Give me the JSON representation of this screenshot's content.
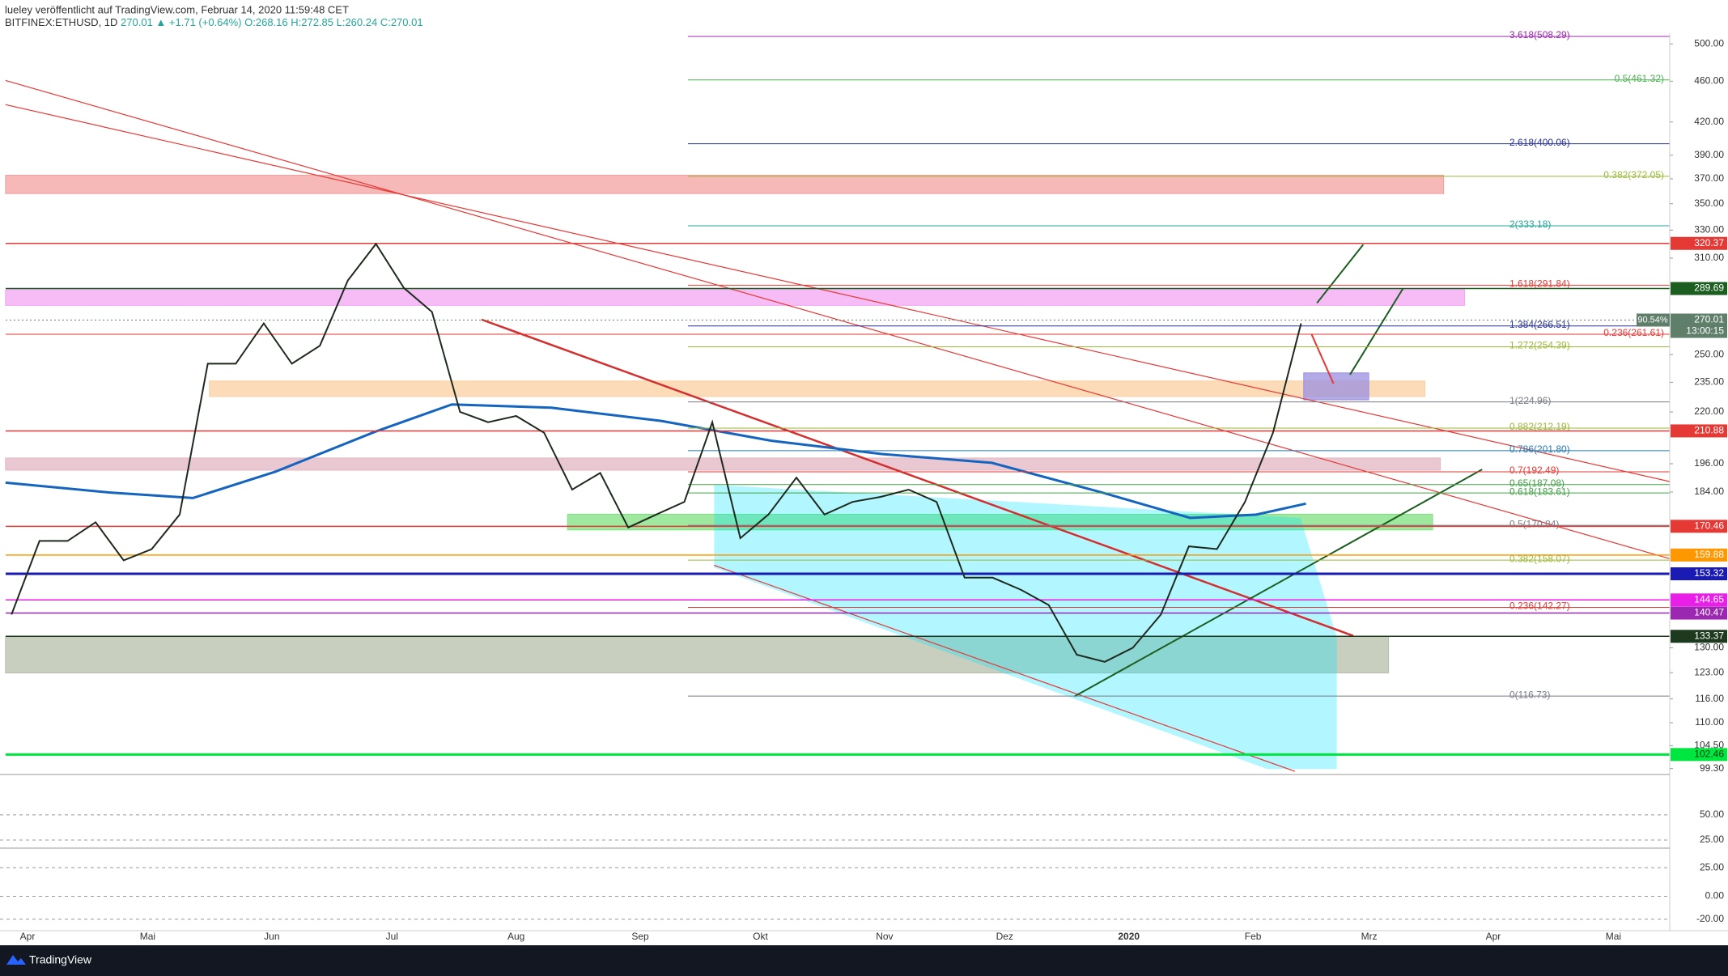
{
  "header": {
    "author_line": "lueley veröffentlicht auf TradingView.com, Februar 14, 2020 11:59:48 CET",
    "symbol": "BITFINEX:ETHUSD, 1D",
    "quote": "270.01 ▲ +1.71 (+0.64%)",
    "ohlc": "O:268.16 H:272.85 L:260.24 C:270.01"
  },
  "chart_data": {
    "type": "line",
    "categories": [
      null,
      null,
      null,
      null,
      null,
      null,
      null,
      null,
      null,
      null,
      null,
      null,
      null,
      null,
      null,
      null,
      null,
      null,
      null,
      null,
      null,
      null,
      null,
      null,
      null,
      null,
      null,
      null,
      null,
      null,
      null,
      null,
      null,
      null,
      null,
      null,
      null,
      null,
      null,
      null,
      null,
      null,
      null,
      null,
      null,
      null,
      null
    ],
    "values": [
      140,
      165,
      165,
      172,
      158,
      162,
      175,
      245,
      245,
      268,
      245,
      255,
      295,
      320,
      290,
      275,
      220,
      215,
      218,
      210,
      185,
      192,
      170,
      175,
      180,
      215,
      166,
      175,
      190,
      175,
      180,
      182,
      185,
      180,
      152,
      152,
      148,
      143,
      128,
      126,
      130,
      140,
      163,
      162,
      180,
      210,
      268
    ],
    "color": "#1e2a1e",
    "log_scale": true,
    "ylim": [
      98,
      512
    ],
    "yticks": [
      {
        "value": 500,
        "label": "500.00"
      },
      {
        "value": 460,
        "label": "460.00"
      },
      {
        "value": 420,
        "label": "420.00"
      },
      {
        "value": 390,
        "label": "390.00"
      },
      {
        "value": 370,
        "label": "370.00"
      },
      {
        "value": 350,
        "label": "350.00"
      },
      {
        "value": 330,
        "label": "330.00"
      },
      {
        "value": 310,
        "label": "310.00"
      },
      {
        "value": 250,
        "label": "250.00"
      },
      {
        "value": 235,
        "label": "235.00"
      },
      {
        "value": 220,
        "label": "220.00"
      },
      {
        "value": 196,
        "label": "196.00"
      },
      {
        "value": 184,
        "label": "184.00"
      },
      {
        "value": 130,
        "label": "130.00"
      },
      {
        "value": 123,
        "label": "123.00"
      },
      {
        "value": 116,
        "label": "116.00"
      },
      {
        "value": 110,
        "label": "110.00"
      },
      {
        "value": 104.5,
        "label": "104.50"
      },
      {
        "value": 99.3,
        "label": "99.30"
      }
    ],
    "time_labels": [
      "Apr",
      "Mai",
      "Jun",
      "Jul",
      "Aug",
      "Sep",
      "Okt",
      "Nov",
      "Dez",
      "2020",
      "Feb",
      "Mrz",
      "Apr",
      "Mai"
    ],
    "zones": [
      {
        "from": 358,
        "to": 373,
        "color": "#f4a0a0"
      },
      {
        "from": 279,
        "to": 289,
        "color": "#f3a6f3"
      },
      {
        "from": 227.7,
        "to": 235.7,
        "color": "#f9cfa0"
      },
      {
        "from": 193.2,
        "to": 198.5,
        "color": "#e3b5c3"
      },
      {
        "from": 169.1,
        "to": 175.1,
        "color": "#7fe07f"
      },
      {
        "from": 122.9,
        "to": 133.3,
        "color": "#b5bfa9"
      },
      {
        "from": 226,
        "to": 240,
        "color": "#9a8fe0"
      }
    ],
    "fib_levels": [
      {
        "label": "3.618(508.29)",
        "value": 508.29,
        "color": "#9c27b0"
      },
      {
        "label": "0.5(461.32)",
        "value": 461.32,
        "color": "#4caf50"
      },
      {
        "label": "2.618(400.06)",
        "value": 400.06,
        "color": "#283593"
      },
      {
        "label": "0.382(372.05)",
        "value": 372.05,
        "color": "#9ab93a"
      },
      {
        "label": "2(333.18)",
        "value": 333.18,
        "color": "#26a69a"
      },
      {
        "label": "1.618(291.84)",
        "value": 291.84,
        "color": "#e53935"
      },
      {
        "label": "1.384(266.51)",
        "value": 266.51,
        "color": "#283593"
      },
      {
        "label": "0.236(261.61)",
        "value": 261.61,
        "color": "#e53935"
      },
      {
        "label": "1.272(254.39)",
        "value": 254.39,
        "color": "#9ab93a"
      },
      {
        "label": "1(224.96)",
        "value": 224.96,
        "color": "#787b86"
      },
      {
        "label": "0.882(212.19)",
        "value": 212.19,
        "color": "#9ab93a"
      },
      {
        "label": "0.786(201.80)",
        "value": 201.8,
        "color": "#2979af"
      },
      {
        "label": "0.7(192.49)",
        "value": 192.49,
        "color": "#e53935"
      },
      {
        "label": "0.65(187.08)",
        "value": 187.08,
        "color": "#43a047"
      },
      {
        "label": "0.618(183.61)",
        "value": 183.61,
        "color": "#43a047"
      },
      {
        "label": "0.5(170.84)",
        "value": 170.84,
        "color": "#787b86"
      },
      {
        "label": "0.382(158.07)",
        "value": 158.07,
        "color": "#9ab93a"
      },
      {
        "label": "0.236(142.27)",
        "value": 142.27,
        "color": "#e53935"
      },
      {
        "label": "0(116.73)",
        "value": 116.73,
        "color": "#787b86"
      }
    ],
    "price_badges": [
      {
        "value": 320.37,
        "color": "#e53935"
      },
      {
        "value": 289.69,
        "color": "#1b5e20"
      },
      {
        "value": 210.88,
        "color": "#e53935"
      },
      {
        "value": 170.46,
        "color": "#e53935"
      },
      {
        "value": 159.88,
        "color": "#ff9800"
      },
      {
        "value": 153.32,
        "color": "#1a1ab5"
      },
      {
        "value": 144.65,
        "color": "#e91ee9"
      },
      {
        "value": 140.47,
        "color": "#9c27b0"
      },
      {
        "value": 133.37,
        "color": "#1e3a1e"
      },
      {
        "value": 102.46,
        "color": "#00e640"
      }
    ],
    "last_price": {
      "value": 270.01,
      "change": "90.54%",
      "countdown": "13:00:15",
      "color": "#5f7f6b"
    },
    "rsi": {
      "ylim": [
        17,
        90
      ],
      "yticks": [
        {
          "value": 50,
          "label": "50.00"
        },
        {
          "value": 25,
          "label": "25.00"
        }
      ]
    },
    "macd": {
      "ylim": [
        -30,
        42
      ],
      "yticks": [
        {
          "value": 25,
          "label": "25.00"
        },
        {
          "value": 0,
          "label": "0.00"
        },
        {
          "value": -20,
          "label": "-20.00"
        }
      ]
    }
  },
  "footer": {
    "brand": "TradingView"
  }
}
